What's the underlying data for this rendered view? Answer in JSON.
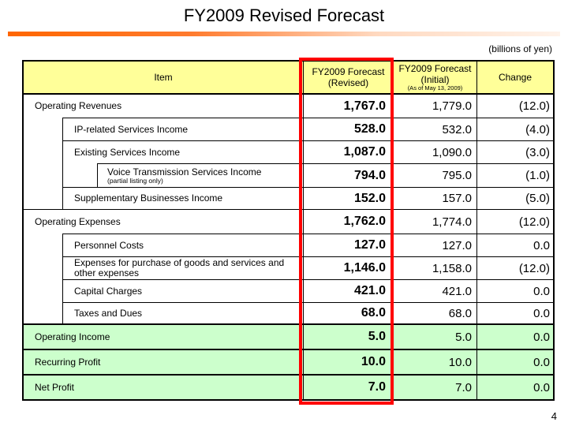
{
  "slide": {
    "title": "FY2009 Revised Forecast",
    "unit_note": "(billions of yen)",
    "page_number": "4"
  },
  "colors": {
    "header_bg": "#FFFF99",
    "summary_bg": "#CCFFCC",
    "highlight_border": "#FF0000",
    "accent_bar_start": "#FF6600",
    "accent_bar_end": "#FFF3EA",
    "table_border": "#000000"
  },
  "table": {
    "header": {
      "item": "Item",
      "revised_line1": "FY2009 Forecast",
      "revised_line2": "(Revised)",
      "initial_line1": "FY2009 Forecast",
      "initial_line2": "(Initial)",
      "initial_line3": "(As of May 13, 2009)",
      "change": "Change"
    },
    "rows": [
      {
        "label": "Operating Revenues",
        "level": 0,
        "revised": "1,767.0",
        "initial": "1,779.0",
        "change": "(12.0)"
      },
      {
        "label": "IP-related Services Income",
        "level": 1,
        "revised": "528.0",
        "initial": "532.0",
        "change": "(4.0)"
      },
      {
        "label": "Existing Services Income",
        "level": 1,
        "revised": "1,087.0",
        "initial": "1,090.0",
        "change": "(3.0)"
      },
      {
        "label": "Voice Transmission Services Income",
        "note": "(partial listing only)",
        "level": 2,
        "revised": "794.0",
        "initial": "795.0",
        "change": "(1.0)"
      },
      {
        "label": "Supplementary Businesses Income",
        "level": 1,
        "revised": "152.0",
        "initial": "157.0",
        "change": "(5.0)"
      },
      {
        "label": "Operating Expenses",
        "level": 0,
        "revised": "1,762.0",
        "initial": "1,774.0",
        "change": "(12.0)"
      },
      {
        "label": "Personnel Costs",
        "level": 1,
        "revised": "127.0",
        "initial": "127.0",
        "change": "0.0"
      },
      {
        "label": "Expenses for purchase of goods and services and other expenses",
        "level": 1,
        "revised": "1,146.0",
        "initial": "1,158.0",
        "change": "(12.0)"
      },
      {
        "label": "Capital Charges",
        "level": 1,
        "revised": "421.0",
        "initial": "421.0",
        "change": "0.0"
      },
      {
        "label": "Taxes and Dues",
        "level": 1,
        "revised": "68.0",
        "initial": "68.0",
        "change": "0.0"
      },
      {
        "label": "Operating Income",
        "level": 0,
        "revised": "5.0",
        "initial": "5.0",
        "change": "0.0"
      },
      {
        "label": "Recurring Profit",
        "level": 0,
        "revised": "10.0",
        "initial": "10.0",
        "change": "0.0"
      },
      {
        "label": "Net Profit",
        "level": 0,
        "revised": "7.0",
        "initial": "7.0",
        "change": "0.0"
      }
    ]
  }
}
